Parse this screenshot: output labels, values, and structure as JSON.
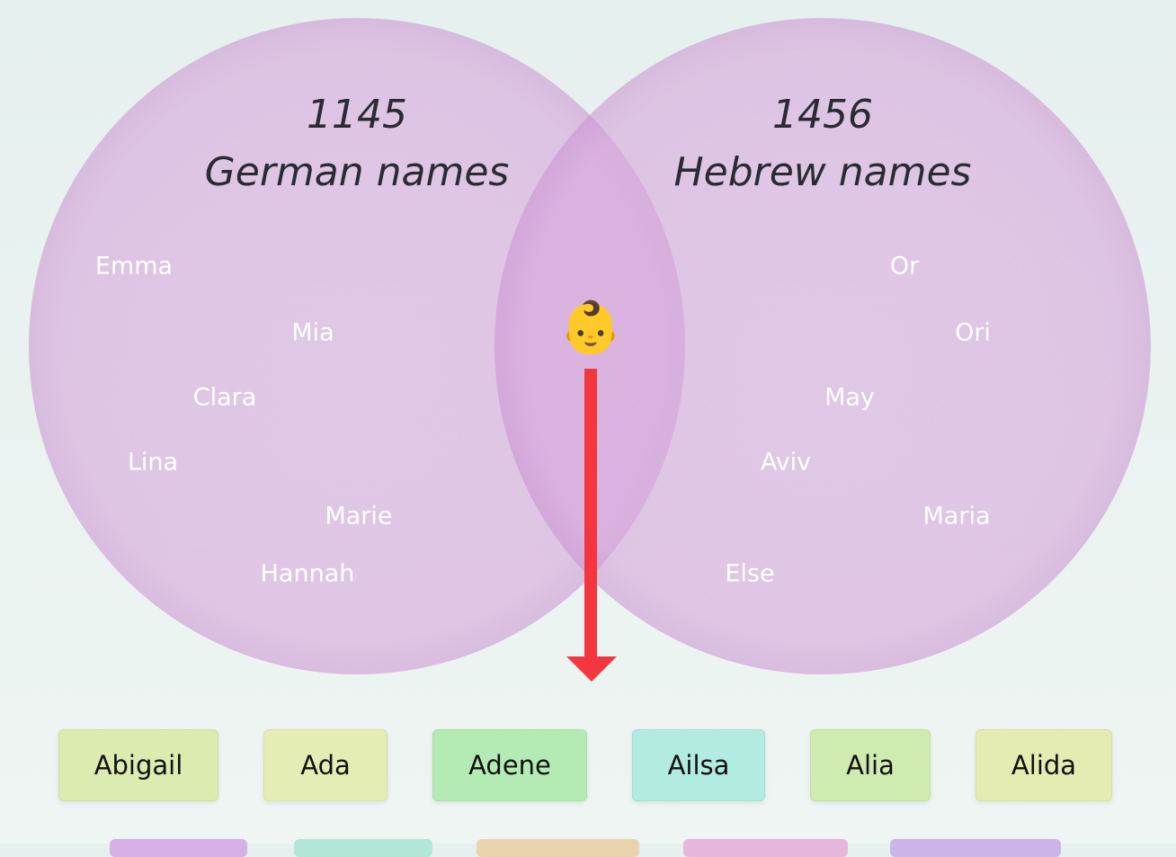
{
  "venn": {
    "left": {
      "count": "1145",
      "label": "German names",
      "names": [
        "Emma",
        "Mia",
        "Clara",
        "Lina",
        "Marie",
        "Hannah"
      ]
    },
    "right": {
      "count": "1456",
      "label": "Hebrew names",
      "names": [
        "Or",
        "Ori",
        "May",
        "Aviv",
        "Maria",
        "Else"
      ]
    },
    "center_icon": "👶"
  },
  "results": [
    {
      "label": "Abigail",
      "color": "#dcebb0"
    },
    {
      "label": "Ada",
      "color": "#e4eeb4"
    },
    {
      "label": "Adene",
      "color": "#b4ebb4"
    },
    {
      "label": "Ailsa",
      "color": "#b2ebdf"
    },
    {
      "label": "Alia",
      "color": "#d0ebb0"
    },
    {
      "label": "Alida",
      "color": "#e4ecb2"
    }
  ]
}
